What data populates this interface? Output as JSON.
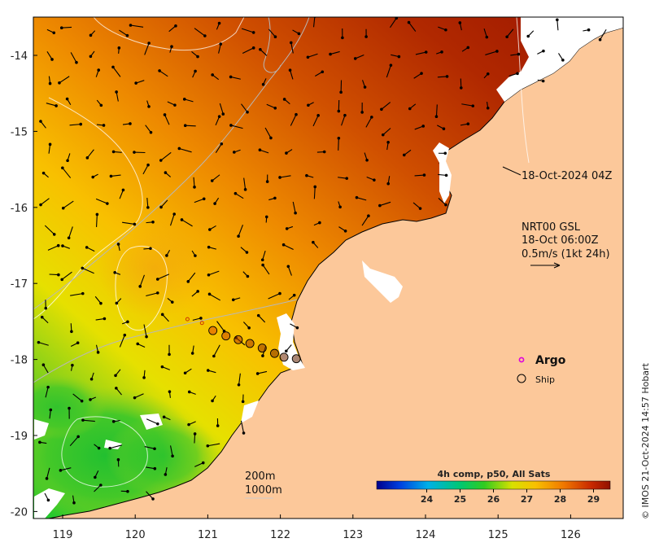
{
  "axes": {
    "lon_ticks": [
      "119",
      "120",
      "121",
      "122",
      "123",
      "124",
      "125",
      "126"
    ],
    "lat_ticks": [
      "-14",
      "-15",
      "-16",
      "-17",
      "-18",
      "-19",
      "-20"
    ]
  },
  "annotations": {
    "sst_time": "18-Oct-2024 04Z",
    "current_product": "NRT00 GSL",
    "current_time": "18-Oct 06:00Z",
    "current_scale": "0.5m/s (1kt 24h)"
  },
  "legend": {
    "argo_label": "Argo",
    "ship_label": "Ship"
  },
  "bathymetry": {
    "contour_1": "200m",
    "contour_2": "1000m"
  },
  "colorbar": {
    "title": "4h comp, p50, All Sats",
    "ticks": [
      "24",
      "25",
      "26",
      "27",
      "28",
      "29"
    ],
    "range": [
      22.5,
      29.5
    ]
  },
  "credit": "© IMOS 21-Oct-2024 14:57 Hobart",
  "colors": {
    "land": "#fcc89a",
    "coast": "#000000",
    "argo": "#dd00dd",
    "ship": "#000000"
  },
  "ship_track": [
    {
      "lon": 121.07,
      "lat": -17.62
    },
    {
      "lon": 121.25,
      "lat": -17.69
    },
    {
      "lon": 121.42,
      "lat": -17.74
    },
    {
      "lon": 121.58,
      "lat": -17.79
    },
    {
      "lon": 121.75,
      "lat": -17.85
    },
    {
      "lon": 121.92,
      "lat": -17.92
    },
    {
      "lon": 122.05,
      "lat": -17.97
    },
    {
      "lon": 122.22,
      "lat": -17.99
    }
  ]
}
